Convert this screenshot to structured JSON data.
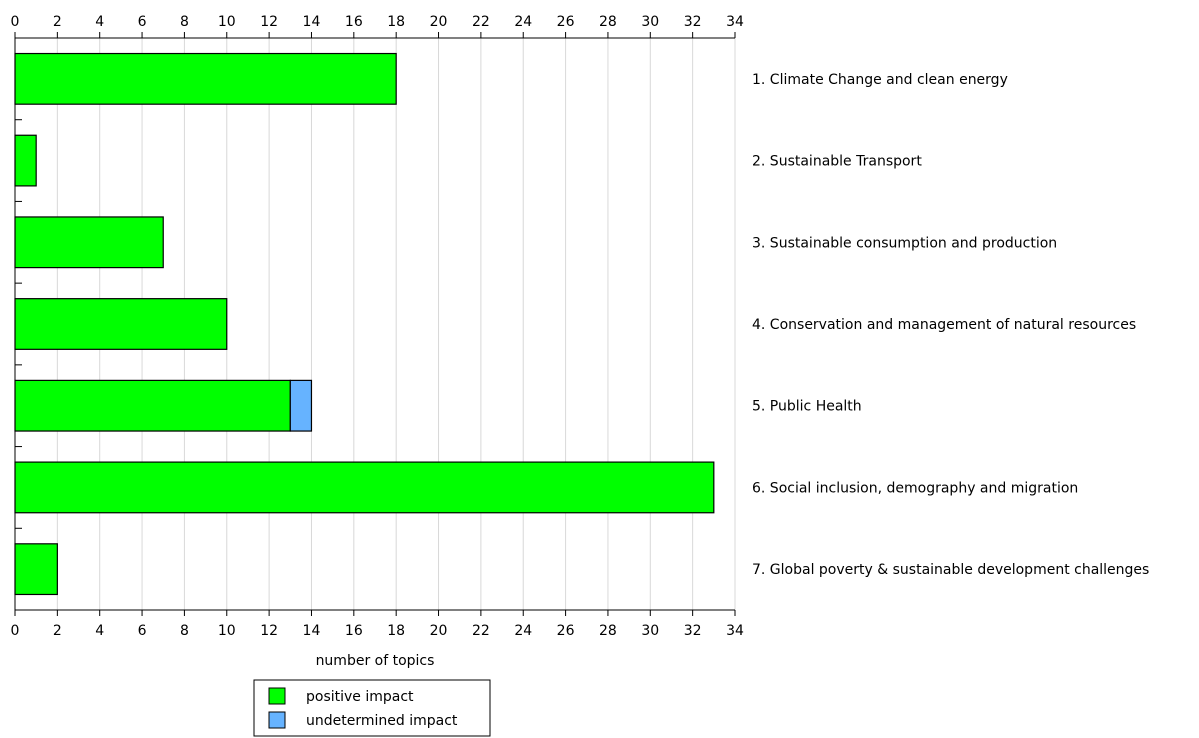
{
  "chart_data": {
    "type": "bar",
    "orientation": "horizontal",
    "stacked": true,
    "categories": [
      "1. Climate Change and clean energy",
      "2. Sustainable Transport",
      "3. Sustainable consumption and production",
      "4. Conservation and management of natural resources",
      "5. Public Health",
      "6. Social inclusion, demography and migration",
      "7. Global poverty & sustainable development challenges"
    ],
    "series": [
      {
        "name": "positive impact",
        "color": "#00ff00",
        "values": [
          18,
          1,
          7,
          10,
          13,
          33,
          2
        ]
      },
      {
        "name": "undetermined impact",
        "color": "#66b3ff",
        "values": [
          0,
          0,
          0,
          0,
          1,
          0,
          0
        ]
      }
    ],
    "xlabel": "number of topics",
    "xlim": [
      0,
      34
    ],
    "xticks": [
      0,
      2,
      4,
      6,
      8,
      10,
      12,
      14,
      16,
      18,
      20,
      22,
      24,
      26,
      28,
      30,
      32,
      34
    ],
    "grid": true,
    "legend_position": "bottom-center"
  }
}
